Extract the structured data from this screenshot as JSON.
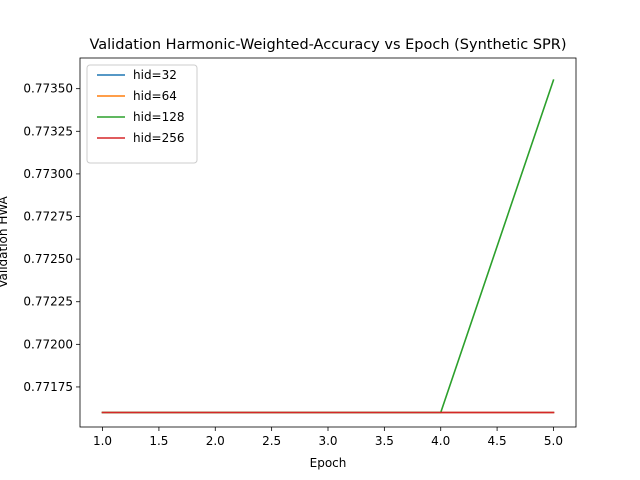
{
  "chart_data": {
    "type": "line",
    "title": "Validation Harmonic-Weighted-Accuracy vs Epoch (Synthetic SPR)",
    "xlabel": "Epoch",
    "ylabel": "Validation HWA",
    "xlim": [
      0.8,
      5.2
    ],
    "ylim": [
      0.771515,
      0.77368
    ],
    "x_ticks": [
      1.0,
      1.5,
      2.0,
      2.5,
      3.0,
      3.5,
      4.0,
      4.5,
      5.0
    ],
    "y_ticks": [
      0.77175,
      0.772,
      0.77225,
      0.7725,
      0.77275,
      0.773,
      0.77325,
      0.7735
    ],
    "x_tick_labels": [
      "1.0",
      "1.5",
      "2.0",
      "2.5",
      "3.0",
      "3.5",
      "4.0",
      "4.5",
      "5.0"
    ],
    "y_tick_labels": [
      "0.77175",
      "0.77200",
      "0.77225",
      "0.77250",
      "0.77275",
      "0.77300",
      "0.77325",
      "0.77350"
    ],
    "grid": false,
    "legend_position": "top-left",
    "x": [
      1,
      2,
      3,
      4,
      5
    ],
    "series": [
      {
        "name": "hid=32",
        "color": "#1f77b4",
        "values": [
          0.7716,
          0.7716,
          0.7716,
          0.7716,
          0.7716
        ]
      },
      {
        "name": "hid=64",
        "color": "#ff7f0e",
        "values": [
          0.7716,
          0.7716,
          0.7716,
          0.7716,
          0.7716
        ]
      },
      {
        "name": "hid=128",
        "color": "#2ca02c",
        "values": [
          0.7716,
          0.7716,
          0.7716,
          0.7716,
          0.77355
        ]
      },
      {
        "name": "hid=256",
        "color": "#d62728",
        "values": [
          0.7716,
          0.7716,
          0.7716,
          0.7716,
          0.7716
        ]
      }
    ]
  }
}
